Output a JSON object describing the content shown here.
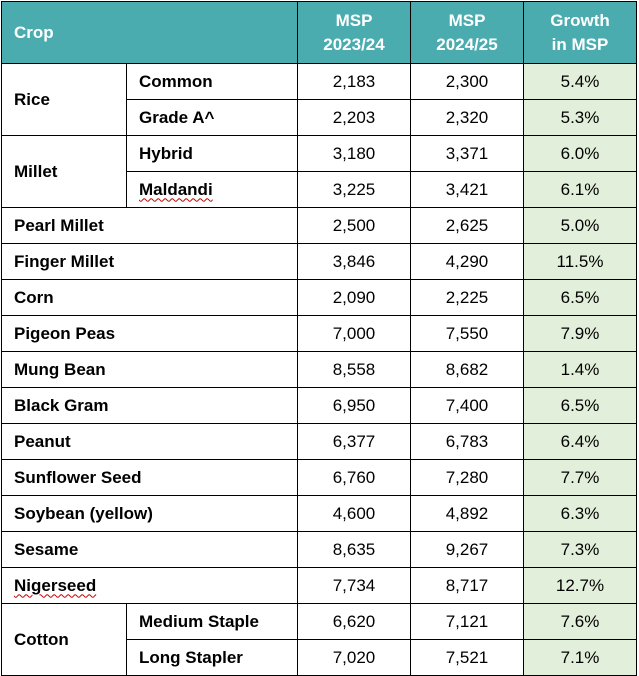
{
  "table": {
    "headers": {
      "crop": "Crop",
      "msp_2023_line1": "MSP",
      "msp_2023_line2": "2023/24",
      "msp_2024_line1": "MSP",
      "msp_2024_line2": "2024/25",
      "growth_line1": "Growth",
      "growth_line2": "in MSP"
    },
    "groups": {
      "rice": "Rice",
      "millet": "Millet",
      "cotton": "Cotton"
    },
    "rows": [
      {
        "crop": "Common",
        "msp_2023": "2,183",
        "msp_2024": "2,300",
        "growth": "5.4%"
      },
      {
        "crop": "Grade A^",
        "msp_2023": "2,203",
        "msp_2024": "2,320",
        "growth": "5.3%"
      },
      {
        "crop": "Hybrid",
        "msp_2023": "3,180",
        "msp_2024": "3,371",
        "growth": "6.0%"
      },
      {
        "crop": "Maldandi",
        "msp_2023": "3,225",
        "msp_2024": "3,421",
        "growth": "6.1%"
      },
      {
        "crop": "Pearl Millet",
        "msp_2023": "2,500",
        "msp_2024": "2,625",
        "growth": "5.0%"
      },
      {
        "crop": "Finger Millet",
        "msp_2023": "3,846",
        "msp_2024": "4,290",
        "growth": "11.5%"
      },
      {
        "crop": "Corn",
        "msp_2023": "2,090",
        "msp_2024": "2,225",
        "growth": "6.5%"
      },
      {
        "crop": "Pigeon Peas",
        "msp_2023": "7,000",
        "msp_2024": "7,550",
        "growth": "7.9%"
      },
      {
        "crop": "Mung Bean",
        "msp_2023": "8,558",
        "msp_2024": "8,682",
        "growth": "1.4%"
      },
      {
        "crop": "Black Gram",
        "msp_2023": "6,950",
        "msp_2024": "7,400",
        "growth": "6.5%"
      },
      {
        "crop": "Peanut",
        "msp_2023": "6,377",
        "msp_2024": "6,783",
        "growth": "6.4%"
      },
      {
        "crop": "Sunflower Seed",
        "msp_2023": "6,760",
        "msp_2024": "7,280",
        "growth": "7.7%"
      },
      {
        "crop": "Soybean (yellow)",
        "msp_2023": "4,600",
        "msp_2024": "4,892",
        "growth": "6.3%"
      },
      {
        "crop": "Sesame",
        "msp_2023": "8,635",
        "msp_2024": "9,267",
        "growth": "7.3%"
      },
      {
        "crop": "Nigerseed",
        "msp_2023": "7,734",
        "msp_2024": "8,717",
        "growth": "12.7%"
      },
      {
        "crop": "Medium Staple",
        "msp_2023": "6,620",
        "msp_2024": "7,121",
        "growth": "7.6%"
      },
      {
        "crop": "Long Stapler",
        "msp_2023": "7,020",
        "msp_2024": "7,521",
        "growth": "7.1%"
      }
    ]
  },
  "colors": {
    "header_bg": "#4bacb0",
    "header_text": "#ffffff",
    "growth_bg": "#e2efda",
    "spellcheck_underline": "#c00000"
  }
}
